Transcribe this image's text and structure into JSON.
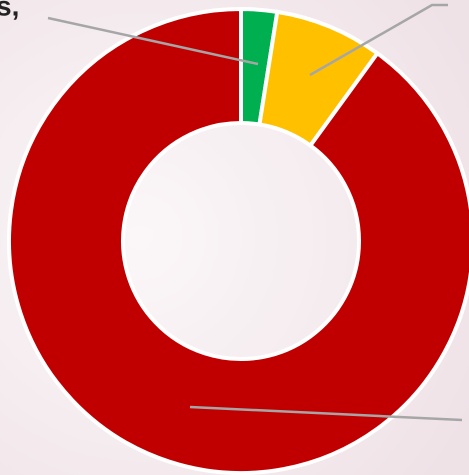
{
  "chart_data": {
    "type": "donut",
    "annotation": "s,",
    "categories": [
      null,
      null,
      null
    ],
    "values": [
      2.5,
      7.5,
      90
    ],
    "colors": [
      "#00b050",
      "#ffc000",
      "#c00000"
    ]
  }
}
